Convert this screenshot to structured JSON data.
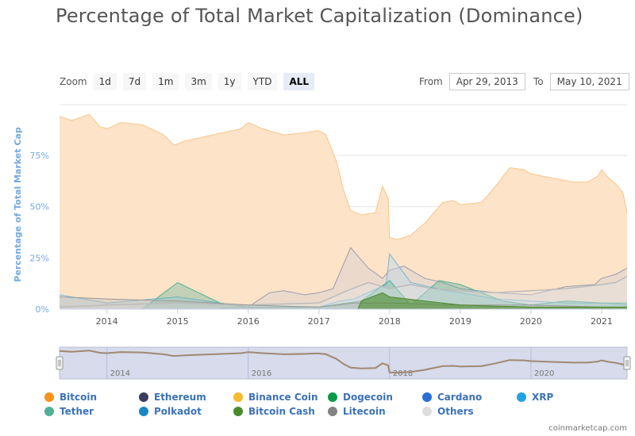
{
  "title": "Percentage of Total Market Capitalization (Dominance)",
  "zoom": {
    "label": "Zoom",
    "buttons": [
      "1d",
      "7d",
      "1m",
      "3m",
      "1y",
      "YTD",
      "ALL"
    ],
    "active": "ALL"
  },
  "range": {
    "from_label": "From",
    "from_value": "Apr 29, 2013",
    "to_label": "To",
    "to_value": "May 10, 2021"
  },
  "credit": "coinmarketcap.com",
  "colors": {
    "bitcoin_fill": "#fde3c7",
    "bitcoin_line": "#f7931a",
    "grid": "#e6e6e6",
    "axis_title": "#74a9e0"
  },
  "chart_data": {
    "type": "area",
    "title": "Percentage of Total Market Capitalization (Dominance)",
    "ylabel": "Percentage of Total Market Cap",
    "ylim": [
      0,
      100
    ],
    "y_ticks": [
      "0%",
      "25%",
      "50%",
      "75%"
    ],
    "x_range": [
      "2013-04-29",
      "2021-05-10"
    ],
    "x_ticks": [
      "2014",
      "2015",
      "2016",
      "2017",
      "2018",
      "2019",
      "2020",
      "2021"
    ],
    "navigator_ticks": [
      "2014",
      "2016",
      "2018",
      "2020"
    ],
    "legend_position": "bottom",
    "legend": [
      {
        "name": "Bitcoin",
        "color": "#f7931a"
      },
      {
        "name": "Ethereum",
        "color": "#3c3c5d"
      },
      {
        "name": "Binance Coin",
        "color": "#f3ba2f"
      },
      {
        "name": "Dogecoin",
        "color": "#0a9a4a"
      },
      {
        "name": "Cardano",
        "color": "#2a6fd6"
      },
      {
        "name": "XRP",
        "color": "#23a3e0"
      },
      {
        "name": "Tether",
        "color": "#50af95"
      },
      {
        "name": "Polkadot",
        "color": "#1a86c8"
      },
      {
        "name": "Bitcoin Cash",
        "color": "#4a8a2a"
      },
      {
        "name": "Litecoin",
        "color": "#838383"
      },
      {
        "name": "Others",
        "color": "#dddddd"
      }
    ],
    "series": [
      {
        "name": "Bitcoin",
        "x": [
          2013.33,
          2013.5,
          2013.75,
          2013.9,
          2014.0,
          2014.2,
          2014.5,
          2014.8,
          2014.95,
          2015.1,
          2015.5,
          2015.9,
          2016.0,
          2016.2,
          2016.5,
          2016.8,
          2016.95,
          2017.0,
          2017.1,
          2017.25,
          2017.35,
          2017.45,
          2017.6,
          2017.8,
          2017.9,
          2017.98,
          2018.0,
          2018.1,
          2018.3,
          2018.5,
          2018.75,
          2018.9,
          2019.0,
          2019.3,
          2019.5,
          2019.7,
          2019.9,
          2020.0,
          2020.3,
          2020.6,
          2020.8,
          2020.95,
          2021.0,
          2021.1,
          2021.2,
          2021.3,
          2021.36
        ],
        "values": [
          94,
          92,
          95,
          89,
          88,
          91,
          90,
          85,
          80,
          82,
          85,
          88,
          91,
          88,
          85,
          86,
          87,
          87,
          85,
          72,
          58,
          48,
          46,
          47,
          60,
          54,
          35,
          34,
          36,
          42,
          52,
          53,
          51,
          52,
          60,
          69,
          68,
          66,
          64,
          62,
          62,
          65,
          68,
          64,
          61,
          57,
          47
        ]
      },
      {
        "name": "Ethereum",
        "x": [
          2015.6,
          2016.0,
          2016.3,
          2016.5,
          2016.8,
          2017.0,
          2017.2,
          2017.45,
          2017.7,
          2017.9,
          2018.0,
          2018.2,
          2018.5,
          2018.75,
          2019.0,
          2019.5,
          2020.0,
          2020.5,
          2020.9,
          2021.0,
          2021.2,
          2021.36
        ],
        "values": [
          0.5,
          1,
          8,
          9,
          7,
          8,
          10,
          30,
          20,
          15,
          19,
          21,
          15,
          13,
          10,
          8,
          7,
          11,
          12,
          15,
          17,
          20
        ]
      },
      {
        "name": "XRP",
        "x": [
          2013.33,
          2014.0,
          2015.0,
          2016.0,
          2017.0,
          2017.3,
          2017.5,
          2017.95,
          2018.0,
          2018.3,
          2018.8,
          2019.0,
          2019.5,
          2020.0,
          2020.5,
          2021.0,
          2021.36
        ],
        "values": [
          7,
          3,
          6,
          1,
          1,
          4,
          5,
          12,
          27,
          13,
          9,
          8,
          5,
          4,
          3,
          3,
          2
        ]
      },
      {
        "name": "Tether",
        "x": [
          2013.33,
          2014.5,
          2015.0,
          2015.6,
          2016.0,
          2017.0,
          2017.6,
          2018.0,
          2018.3,
          2018.7,
          2019.0,
          2019.6,
          2020.0,
          2020.5,
          2021.0,
          2021.36
        ],
        "values": [
          0,
          0,
          13,
          3,
          1,
          1,
          4,
          14,
          2,
          14,
          12,
          4,
          2,
          4,
          3,
          3
        ]
      },
      {
        "name": "Litecoin",
        "x": [
          2013.33,
          2014.0,
          2015.0,
          2016.0,
          2017.0,
          2017.5,
          2018.0,
          2019.0,
          2020.0,
          2021.0,
          2021.36
        ],
        "values": [
          6,
          5,
          4,
          2,
          1,
          3,
          3,
          2,
          2,
          1,
          1
        ]
      },
      {
        "name": "Bitcoin Cash",
        "x": [
          2017.55,
          2017.6,
          2017.9,
          2018.0,
          2018.5,
          2019.0,
          2020.0,
          2021.0,
          2021.36
        ],
        "values": [
          0,
          4,
          8,
          6,
          4,
          2,
          1,
          1,
          1
        ]
      },
      {
        "name": "Others",
        "x": [
          2013.33,
          2014.0,
          2015.0,
          2016.0,
          2017.0,
          2017.4,
          2017.7,
          2018.0,
          2018.3,
          2018.6,
          2019.0,
          2019.5,
          2020.0,
          2020.5,
          2021.0,
          2021.2,
          2021.36
        ],
        "values": [
          1,
          2,
          3,
          2,
          3,
          9,
          13,
          10,
          12,
          10,
          9,
          8,
          9,
          10,
          12,
          13,
          16
        ]
      }
    ]
  }
}
